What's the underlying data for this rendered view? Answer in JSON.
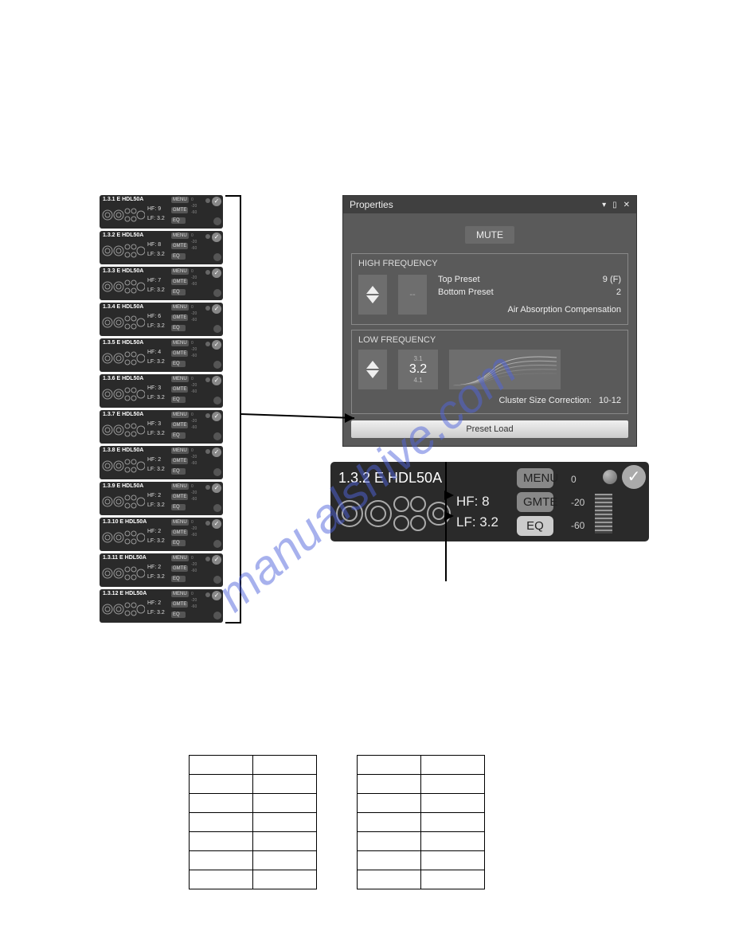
{
  "modules": [
    {
      "id": "1.3.1 E HDL50A",
      "hf": "HF: 9",
      "lf": "LF: 3.2"
    },
    {
      "id": "1.3.2 E HDL50A",
      "hf": "HF: 8",
      "lf": "LF: 3.2"
    },
    {
      "id": "1.3.3 E HDL50A",
      "hf": "HF: 7",
      "lf": "LF: 3.2"
    },
    {
      "id": "1.3.4 E HDL50A",
      "hf": "HF: 6",
      "lf": "LF: 3.2"
    },
    {
      "id": "1.3.5 E HDL50A",
      "hf": "HF: 4",
      "lf": "LF: 3.2"
    },
    {
      "id": "1.3.6 E HDL50A",
      "hf": "HF: 3",
      "lf": "LF: 3.2"
    },
    {
      "id": "1.3.7 E HDL50A",
      "hf": "HF: 3",
      "lf": "LF: 3.2"
    },
    {
      "id": "1.3.8 E HDL50A",
      "hf": "HF: 2",
      "lf": "LF: 3.2"
    },
    {
      "id": "1.3.9 E HDL50A",
      "hf": "HF: 2",
      "lf": "LF: 3.2"
    },
    {
      "id": "1.3.10 E HDL50A",
      "hf": "HF: 2",
      "lf": "LF: 3.2"
    },
    {
      "id": "1.3.11 E HDL50A",
      "hf": "HF: 2",
      "lf": "LF: 3.2"
    },
    {
      "id": "1.3.12 E HDL50A",
      "hf": "HF: 2",
      "lf": "LF: 3.2"
    }
  ],
  "module_buttons": {
    "menu": "MENU",
    "gmte": "GMTE",
    "eq": "EQ"
  },
  "module_scales": [
    "0",
    "-20",
    "-60"
  ],
  "properties": {
    "title": "Properties",
    "mute": "MUTE",
    "hf_title": "HIGH FREQUENCY",
    "hf_display": "--",
    "top_preset_label": "Top Preset",
    "top_preset_value": "9 (F)",
    "bottom_preset_label": "Bottom Preset",
    "bottom_preset_value": "2",
    "air_absorption": "Air Absorption Compensation",
    "lf_title": "LOW FREQUENCY",
    "lf_top": "3.1",
    "lf_main": "3.2",
    "lf_bottom": "4.1",
    "cluster_label": "Cluster Size Correction:",
    "cluster_value": "10-12",
    "preset_load": "Preset Load"
  },
  "large_module": {
    "title": "1.3.2 E HDL50A",
    "hf": "HF: 8",
    "lf": "LF: 3.2",
    "menu": "MENU",
    "gmte": "GMTE",
    "eq": "EQ",
    "scale0": "0",
    "scale20": "-20",
    "scale60": "-60"
  },
  "watermark": "manualshive.com",
  "colors": {
    "panel_bg": "#2a2a2a",
    "props_bg": "#5a5a5a",
    "button_bg": "#888888"
  }
}
